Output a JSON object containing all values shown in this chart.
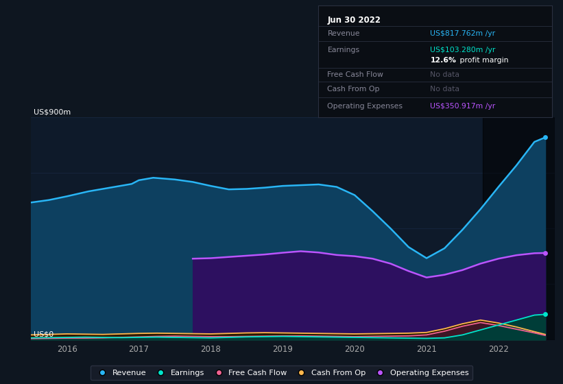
{
  "bg_color": "#0e1620",
  "plot_bg_color": "#0e1a2a",
  "ylabel": "US$900m",
  "y0_label": "US$0",
  "ylim": [
    0,
    900
  ],
  "xlim": [
    2015.5,
    2022.78
  ],
  "grid_color": "#1e3050",
  "tooltip": {
    "title": "Jun 30 2022",
    "rows": [
      {
        "label": "Revenue",
        "value": "US$817.762m",
        "suffix": " /yr",
        "value_color": "#29b6f6"
      },
      {
        "label": "Earnings",
        "value": "US$103.280m",
        "suffix": " /yr",
        "value_color": "#00e5cc"
      },
      {
        "label": "",
        "bold": "12.6%",
        "rest": " profit margin",
        "value_color": "#ffffff"
      },
      {
        "label": "Free Cash Flow",
        "value": "No data",
        "suffix": "",
        "value_color": "#555566"
      },
      {
        "label": "Cash From Op",
        "value": "No data",
        "suffix": "",
        "value_color": "#555566"
      },
      {
        "label": "Operating Expenses",
        "value": "US$350.917m",
        "suffix": " /yr",
        "value_color": "#bb55ff"
      }
    ]
  },
  "series": {
    "revenue": {
      "color": "#29b6f6",
      "fill_color": "#0d4060",
      "x": [
        2015.5,
        2015.75,
        2016.0,
        2016.3,
        2016.6,
        2016.9,
        2017.0,
        2017.2,
        2017.5,
        2017.75,
        2018.0,
        2018.25,
        2018.5,
        2018.75,
        2019.0,
        2019.25,
        2019.5,
        2019.75,
        2020.0,
        2020.25,
        2020.5,
        2020.75,
        2021.0,
        2021.25,
        2021.5,
        2021.75,
        2022.0,
        2022.25,
        2022.5,
        2022.65
      ],
      "y": [
        555,
        565,
        580,
        600,
        615,
        630,
        645,
        655,
        648,
        638,
        622,
        608,
        610,
        615,
        622,
        625,
        628,
        618,
        585,
        520,
        450,
        375,
        330,
        370,
        445,
        528,
        618,
        705,
        800,
        818
      ]
    },
    "earnings": {
      "color": "#00e5cc",
      "fill_color": "#003d38",
      "x": [
        2015.5,
        2015.75,
        2016.0,
        2016.25,
        2016.5,
        2016.75,
        2017.0,
        2017.25,
        2017.5,
        2017.75,
        2018.0,
        2018.25,
        2018.5,
        2018.75,
        2019.0,
        2019.25,
        2019.5,
        2019.75,
        2020.0,
        2020.25,
        2020.5,
        2020.75,
        2021.0,
        2021.25,
        2021.5,
        2021.75,
        2022.0,
        2022.25,
        2022.5,
        2022.65
      ],
      "y": [
        8,
        9,
        10,
        11,
        10,
        9,
        10,
        11,
        10,
        9,
        8,
        10,
        12,
        13,
        14,
        13,
        12,
        11,
        10,
        9,
        8,
        7,
        6,
        8,
        20,
        40,
        60,
        80,
        100,
        103
      ]
    },
    "free_cash_flow": {
      "color": "#f06292",
      "fill_color": "#3d1525",
      "x": [
        2015.5,
        2015.75,
        2016.0,
        2016.25,
        2016.5,
        2016.75,
        2017.0,
        2017.25,
        2017.5,
        2017.75,
        2018.0,
        2018.25,
        2018.5,
        2018.75,
        2019.0,
        2019.25,
        2019.5,
        2019.75,
        2020.0,
        2020.25,
        2020.5,
        2020.75,
        2021.0,
        2021.25,
        2021.5,
        2021.75,
        2022.0,
        2022.25,
        2022.5,
        2022.65
      ],
      "y": [
        5,
        6,
        7,
        7,
        8,
        10,
        12,
        14,
        15,
        14,
        13,
        13,
        14,
        15,
        16,
        16,
        15,
        14,
        13,
        14,
        15,
        16,
        20,
        35,
        55,
        70,
        58,
        43,
        28,
        18
      ]
    },
    "cash_from_op": {
      "color": "#ffb74d",
      "fill_color": "#2a1a00",
      "x": [
        2015.5,
        2015.75,
        2016.0,
        2016.25,
        2016.5,
        2016.75,
        2017.0,
        2017.25,
        2017.5,
        2017.75,
        2018.0,
        2018.25,
        2018.5,
        2018.75,
        2019.0,
        2019.25,
        2019.5,
        2019.75,
        2020.0,
        2020.25,
        2020.5,
        2020.75,
        2021.0,
        2021.25,
        2021.5,
        2021.75,
        2022.0,
        2022.25,
        2022.5,
        2022.65
      ],
      "y": [
        20,
        22,
        24,
        23,
        22,
        24,
        26,
        27,
        26,
        25,
        24,
        26,
        28,
        29,
        28,
        27,
        26,
        25,
        24,
        25,
        26,
        27,
        30,
        45,
        65,
        80,
        68,
        52,
        33,
        22
      ]
    },
    "operating_expenses": {
      "color": "#bb55ff",
      "fill_color": "#2d1060",
      "x": [
        2017.75,
        2018.0,
        2018.25,
        2018.5,
        2018.75,
        2019.0,
        2019.25,
        2019.5,
        2019.75,
        2020.0,
        2020.25,
        2020.5,
        2020.75,
        2021.0,
        2021.25,
        2021.5,
        2021.75,
        2022.0,
        2022.25,
        2022.5,
        2022.65
      ],
      "y": [
        328,
        330,
        335,
        340,
        345,
        352,
        358,
        353,
        343,
        338,
        328,
        308,
        278,
        252,
        263,
        282,
        308,
        328,
        342,
        350,
        351
      ]
    }
  },
  "highlight_start": 2021.78,
  "highlight_end": 2022.78,
  "legend": [
    {
      "label": "Revenue",
      "color": "#29b6f6"
    },
    {
      "label": "Earnings",
      "color": "#00e5cc"
    },
    {
      "label": "Free Cash Flow",
      "color": "#f06292"
    },
    {
      "label": "Cash From Op",
      "color": "#ffb74d"
    },
    {
      "label": "Operating Expenses",
      "color": "#bb55ff"
    }
  ]
}
